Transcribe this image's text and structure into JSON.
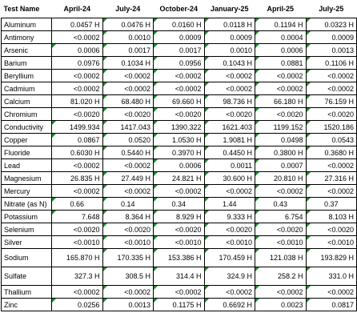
{
  "header": {
    "name": "Test Name",
    "periods": [
      "April-24",
      "July-24",
      "October-24",
      "January-25",
      "April-25",
      "July-25"
    ]
  },
  "rows": [
    {
      "name": "Aluminum",
      "values": [
        "0.0457 H",
        "0.0476 H",
        "0.0160 H",
        "0.0118 H",
        "0.1194 H",
        "0.0323 H"
      ]
    },
    {
      "name": "Antimony",
      "values": [
        "<0.0002",
        "0.0010",
        "0.0009",
        "0.0009",
        "0.0004",
        "0.0009"
      ]
    },
    {
      "name": "Arsenic",
      "values": [
        "0.0006",
        "0.0017",
        "0.0017",
        "0.0010",
        "0.0006",
        "0.0013"
      ]
    },
    {
      "name": "Barium",
      "values": [
        "0.0976",
        "0.1034 H",
        "0.0956",
        "0.1043 H",
        "0.0881",
        "0.1106 H"
      ]
    },
    {
      "name": "Beryllium",
      "values": [
        "<0.0002",
        "<0.0002",
        "<0.0002",
        "<0.0002",
        "<0.0002",
        "<0.0002"
      ]
    },
    {
      "name": "Cadmium",
      "values": [
        "<0.0002",
        "<0.0002",
        "<0.0002",
        "<0.0002",
        "<0.0002",
        "<0.0002"
      ]
    },
    {
      "name": "Calcium",
      "values": [
        "81.020 H",
        "68.480 H",
        "69.660 H",
        "98.736 H",
        "66.180 H",
        "76.159 H"
      ]
    },
    {
      "name": "Chromium",
      "values": [
        "<0.0020",
        "<0.0020",
        "<0.0020",
        "<0.0020",
        "<0.0020",
        "<0.0020"
      ]
    },
    {
      "name": "Conductivity",
      "values": [
        "1499.934",
        "1417.043",
        "1390.322",
        "1621.403",
        "1199.152",
        "1520.186"
      ]
    },
    {
      "name": "Copper",
      "values": [
        "0.0867",
        "0.0520",
        "1.0530 H",
        "1.9081 H",
        "0.0498",
        "0.0543"
      ]
    },
    {
      "name": "Fluoride",
      "values": [
        "0.6030 H",
        "0.5440 H",
        "0.3970 H",
        "0.4450 H",
        "0.3800 H",
        "0.3680 H"
      ]
    },
    {
      "name": "Lead",
      "values": [
        "<0.0002",
        "<0.0002",
        "0.0006",
        "0.0011",
        "0.0007",
        "<0.0002"
      ]
    },
    {
      "name": "Magnesium",
      "values": [
        "26.835 H",
        "27.449 H",
        "24.821 H",
        "30.600 H",
        "20.810 H",
        "27.316 H"
      ]
    },
    {
      "name": "Mercury",
      "values": [
        "<0.0002",
        "<0.0002",
        "<0.0002",
        "<0.0002",
        "<0.0002",
        "<0.0002"
      ]
    },
    {
      "name": "Nitrate (as N)",
      "values": [
        "0.66",
        "0.14",
        "0.34",
        "1.44",
        "0.43",
        "0.37"
      ]
    },
    {
      "name": "Potassium",
      "values": [
        "7.648",
        "8.364 H",
        "8.929 H",
        "9.333 H",
        "6.754",
        "8.103 H"
      ]
    },
    {
      "name": "Selenium",
      "values": [
        "<0.0020",
        "<0.0020",
        "<0.0020",
        "<0.0020",
        "<0.0020",
        "<0.0020"
      ]
    },
    {
      "name": "Silver",
      "values": [
        "<0.0010",
        "<0.0010",
        "<0.0010",
        "<0.0010",
        "<0.0010",
        "<0.0010"
      ]
    },
    {
      "name": "Sodium",
      "values": [
        "165.870 H",
        "170.335 H",
        "153.386 H",
        "170.459 H",
        "121.038 H",
        "193.829 H"
      ]
    },
    {
      "name": "Sulfate",
      "values": [
        "327.3 H",
        "308.5 H",
        "314.4 H",
        "324.9 H",
        "258.2 H",
        "331.0 H"
      ]
    },
    {
      "name": "Thallium",
      "values": [
        "<0.0002",
        "<0.0002",
        "<0.0002",
        "<0.0002",
        "<0.0002",
        "<0.0002"
      ]
    },
    {
      "name": "Zinc",
      "values": [
        "0.0256",
        "0.0013",
        "0.1175 H",
        "0.6692 H",
        "0.0023",
        "0.0817"
      ]
    }
  ],
  "flag_color": "#1a8a2a"
}
